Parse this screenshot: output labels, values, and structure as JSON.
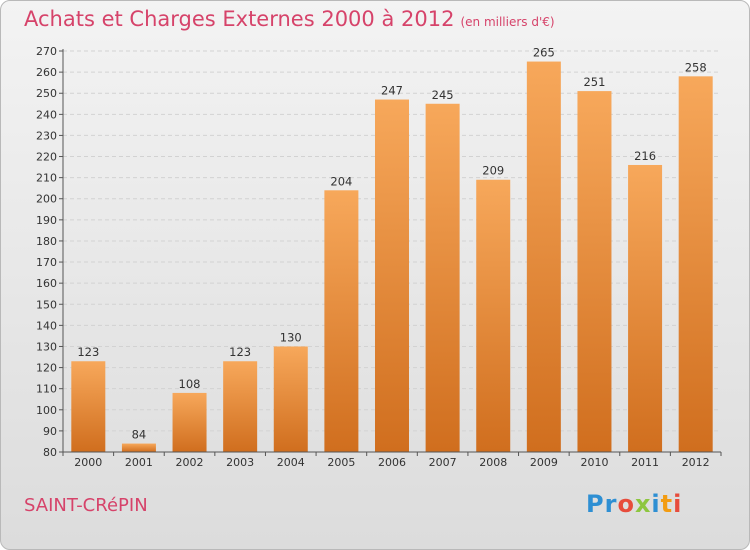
{
  "header": {
    "title": "Achats et Charges Externes 2000 à 2012",
    "unit": "(en milliers d'€)"
  },
  "footer": {
    "commune": "SAINT-CRéPIN",
    "logo": {
      "letters": [
        "P",
        "r",
        "o",
        "x",
        "i",
        "t",
        "i"
      ],
      "colors": [
        "#2e8fd3",
        "#2e8fd3",
        "#e74c3c",
        "#8dc63f",
        "#2e8fd3",
        "#f39c12",
        "#e74c3c"
      ]
    }
  },
  "chart_data": {
    "type": "bar",
    "categories": [
      "2000",
      "2001",
      "2002",
      "2003",
      "2004",
      "2005",
      "2006",
      "2007",
      "2008",
      "2009",
      "2010",
      "2011",
      "2012"
    ],
    "values": [
      123,
      84,
      108,
      123,
      130,
      204,
      247,
      245,
      209,
      265,
      251,
      216,
      258
    ],
    "ylim": [
      80,
      270
    ],
    "yticks": [
      80,
      90,
      100,
      110,
      120,
      130,
      140,
      150,
      160,
      170,
      180,
      190,
      200,
      210,
      220,
      230,
      240,
      250,
      260,
      270
    ],
    "grid": true,
    "bar_color": "#f5a24b"
  }
}
